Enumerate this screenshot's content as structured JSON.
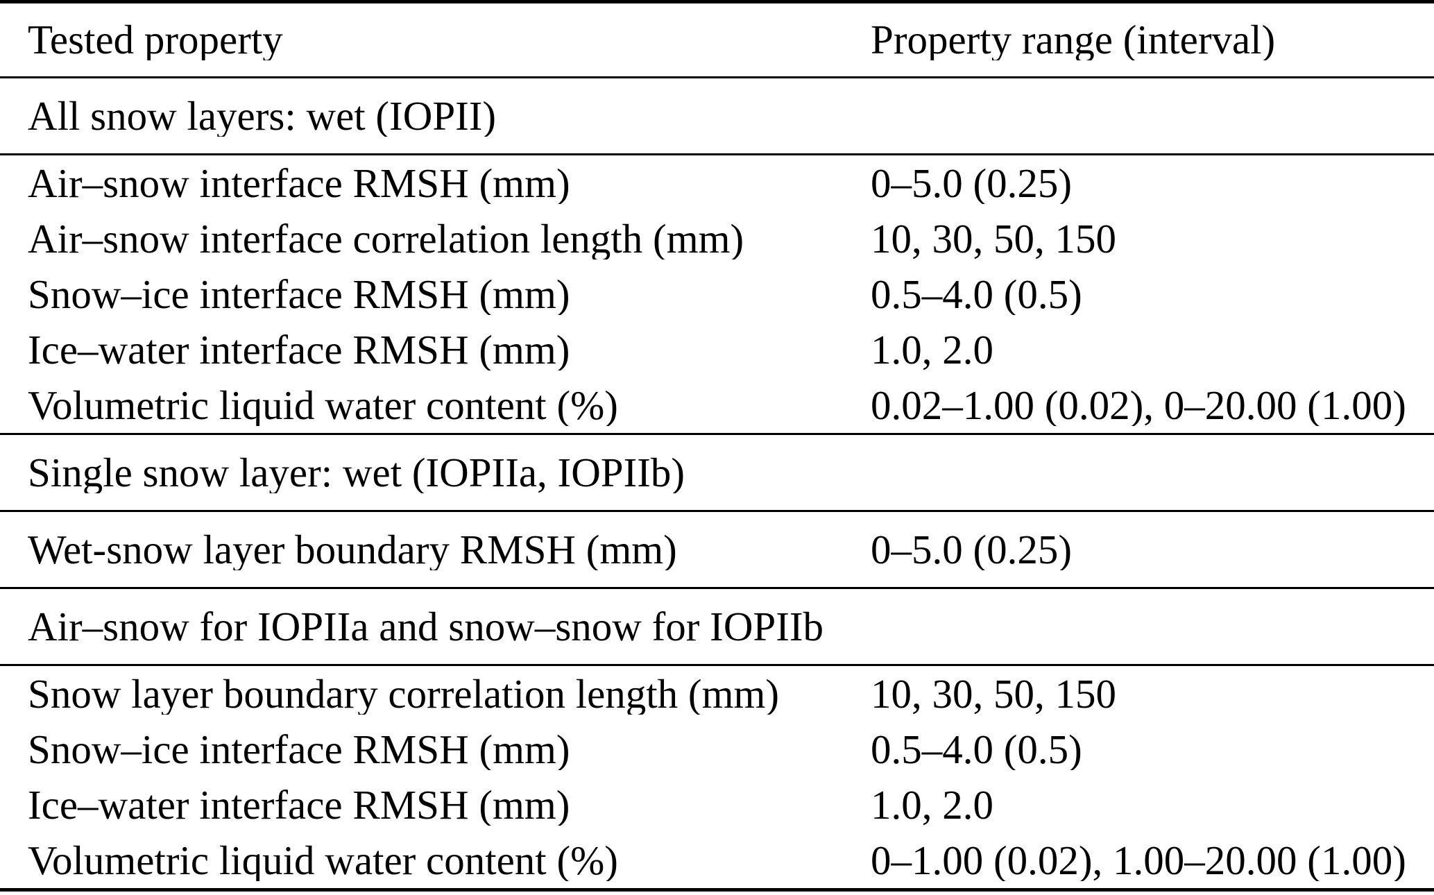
{
  "table": {
    "columns": [
      "Tested property",
      "Property range (interval)"
    ],
    "sections": [
      {
        "title": "All snow layers: wet (IOPII)",
        "rows": [
          [
            "Air–snow interface RMSH (mm)",
            "0–5.0 (0.25)"
          ],
          [
            "Air–snow interface correlation length (mm)",
            "10, 30, 50, 150"
          ],
          [
            "Snow–ice interface RMSH (mm)",
            "0.5–4.0 (0.5)"
          ],
          [
            "Ice–water interface RMSH (mm)",
            "1.0, 2.0"
          ],
          [
            "Volumetric liquid water content (%)",
            "0.02–1.00 (0.02), 0–20.00 (1.00)"
          ]
        ]
      },
      {
        "title": "Single snow layer: wet (IOPIIa, IOPIIb)",
        "rows": [
          [
            "Wet-snow layer boundary RMSH (mm)",
            "0–5.0 (0.25)"
          ]
        ]
      },
      {
        "title": "Air–snow for IOPIIa and snow–snow for IOPIIb",
        "rows": [
          [
            "Snow layer boundary correlation length (mm)",
            "10, 30, 50, 150"
          ],
          [
            "Snow–ice interface RMSH (mm)",
            "0.5–4.0 (0.5)"
          ],
          [
            "Ice–water interface RMSH (mm)",
            "1.0, 2.0"
          ],
          [
            "Volumetric liquid water content (%)",
            "0–1.00 (0.02), 1.00–20.00 (1.00)"
          ]
        ]
      }
    ],
    "colors": {
      "text": "#000000",
      "background": "#ffffff",
      "rule": "#000000"
    }
  }
}
